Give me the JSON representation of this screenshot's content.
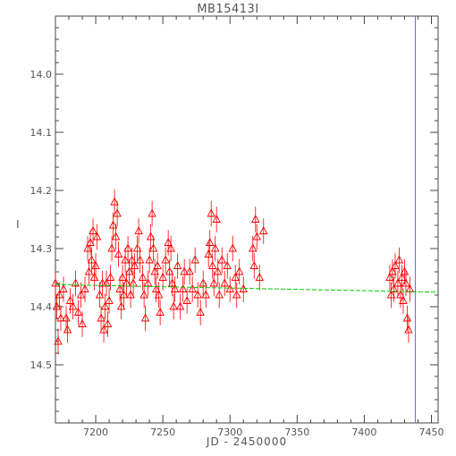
{
  "chart_data": {
    "type": "scatter",
    "title": "MB15413I",
    "xlabel": "JD - 2450000",
    "ylabel": "I",
    "xlim": [
      7170,
      7455
    ],
    "ylim": [
      14.6,
      13.9
    ],
    "y_inverted": true,
    "x_ticks": [
      7200,
      7250,
      7300,
      7350,
      7400,
      7450
    ],
    "x_tick_labels": [
      "7200",
      "7250",
      "7300",
      "7350",
      "7400",
      "7450"
    ],
    "y_ticks": [
      14.0,
      14.1,
      14.2,
      14.3,
      14.4,
      14.5
    ],
    "y_tick_labels": [
      "14.0",
      "14.1",
      "14.2",
      "14.3",
      "14.4",
      "14.5"
    ],
    "grid": false,
    "series": [
      {
        "marker": "open-triangle",
        "color": "#ff0000",
        "error_bar_color": "#ff0000",
        "points": [
          [
            7170,
            14.36
          ],
          [
            7171,
            14.4
          ],
          [
            7172,
            14.46
          ],
          [
            7173,
            14.38
          ],
          [
            7174,
            14.42
          ],
          [
            7176,
            14.37
          ],
          [
            7178,
            14.42
          ],
          [
            7179,
            14.44
          ],
          [
            7181,
            14.39
          ],
          [
            7183,
            14.4
          ],
          [
            7185,
            14.36
          ],
          [
            7187,
            14.41
          ],
          [
            7189,
            14.38
          ],
          [
            7190,
            14.43
          ],
          [
            7192,
            14.37
          ],
          [
            7194,
            14.3
          ],
          [
            7195,
            14.34
          ],
          [
            7196,
            14.29
          ],
          [
            7197,
            14.32
          ],
          [
            7198,
            14.27
          ],
          [
            7199,
            14.35
          ],
          [
            7200,
            14.33
          ],
          [
            7201,
            14.28
          ],
          [
            7203,
            14.38
          ],
          [
            7204,
            14.42
          ],
          [
            7205,
            14.36
          ],
          [
            7206,
            14.44
          ],
          [
            7207,
            14.4
          ],
          [
            7208,
            14.36
          ],
          [
            7209,
            14.43
          ],
          [
            7210,
            14.39
          ],
          [
            7211,
            14.35
          ],
          [
            7212,
            14.3
          ],
          [
            7213,
            14.26
          ],
          [
            7214,
            14.22
          ],
          [
            7215,
            14.28
          ],
          [
            7216,
            14.24
          ],
          [
            7217,
            14.31
          ],
          [
            7218,
            14.37
          ],
          [
            7219,
            14.4
          ],
          [
            7220,
            14.35
          ],
          [
            7221,
            14.38
          ],
          [
            7222,
            14.32
          ],
          [
            7223,
            14.36
          ],
          [
            7224,
            14.3
          ],
          [
            7225,
            14.34
          ],
          [
            7226,
            14.38
          ],
          [
            7227,
            14.32
          ],
          [
            7228,
            14.36
          ],
          [
            7229,
            14.33
          ],
          [
            7231,
            14.3
          ],
          [
            7232,
            14.27
          ],
          [
            7233,
            14.32
          ],
          [
            7235,
            14.35
          ],
          [
            7236,
            14.38
          ],
          [
            7237,
            14.42
          ],
          [
            7239,
            14.36
          ],
          [
            7240,
            14.32
          ],
          [
            7241,
            14.28
          ],
          [
            7242,
            14.24
          ],
          [
            7243,
            14.3
          ],
          [
            7244,
            14.34
          ],
          [
            7245,
            14.37
          ],
          [
            7246,
            14.33
          ],
          [
            7247,
            14.38
          ],
          [
            7248,
            14.41
          ],
          [
            7250,
            14.35
          ],
          [
            7252,
            14.32
          ],
          [
            7254,
            14.29
          ],
          [
            7255,
            14.34
          ],
          [
            7256,
            14.3
          ],
          [
            7257,
            14.36
          ],
          [
            7258,
            14.4
          ],
          [
            7259,
            14.37
          ],
          [
            7261,
            14.33
          ],
          [
            7263,
            14.4
          ],
          [
            7265,
            14.37
          ],
          [
            7266,
            14.34
          ],
          [
            7268,
            14.39
          ],
          [
            7270,
            14.34
          ],
          [
            7272,
            14.37
          ],
          [
            7274,
            14.32
          ],
          [
            7276,
            14.38
          ],
          [
            7278,
            14.41
          ],
          [
            7280,
            14.36
          ],
          [
            7282,
            14.38
          ],
          [
            7284,
            14.31
          ],
          [
            7285,
            14.29
          ],
          [
            7286,
            14.24
          ],
          [
            7287,
            14.33
          ],
          [
            7288,
            14.36
          ],
          [
            7289,
            14.3
          ],
          [
            7290,
            14.25
          ],
          [
            7291,
            14.34
          ],
          [
            7292,
            14.38
          ],
          [
            7294,
            14.32
          ],
          [
            7296,
            14.36
          ],
          [
            7298,
            14.33
          ],
          [
            7300,
            14.37
          ],
          [
            7302,
            14.3
          ],
          [
            7304,
            14.35
          ],
          [
            7305,
            14.38
          ],
          [
            7307,
            14.34
          ],
          [
            7310,
            14.37
          ],
          [
            7317,
            14.3
          ],
          [
            7318,
            14.33
          ],
          [
            7319,
            14.25
          ],
          [
            7320,
            14.28
          ],
          [
            7322,
            14.35
          ],
          [
            7325,
            14.27
          ],
          [
            7419,
            14.35
          ],
          [
            7420,
            14.38
          ],
          [
            7421,
            14.34
          ],
          [
            7422,
            14.37
          ],
          [
            7423,
            14.33
          ],
          [
            7425,
            14.36
          ],
          [
            7426,
            14.32
          ],
          [
            7427,
            14.38
          ],
          [
            7428,
            14.35
          ],
          [
            7429,
            14.39
          ],
          [
            7430,
            14.34
          ],
          [
            7431,
            14.36
          ],
          [
            7432,
            14.42
          ],
          [
            7433,
            14.44
          ],
          [
            7434,
            14.37
          ]
        ]
      },
      {
        "type": "line",
        "color": "#00cc00",
        "style": "dashed",
        "x": [
          7170,
          7455
        ],
        "y": [
          14.362,
          14.375
        ]
      }
    ],
    "vertical_lines": [
      {
        "x": 7438,
        "color": "#6b6bd6"
      }
    ]
  }
}
